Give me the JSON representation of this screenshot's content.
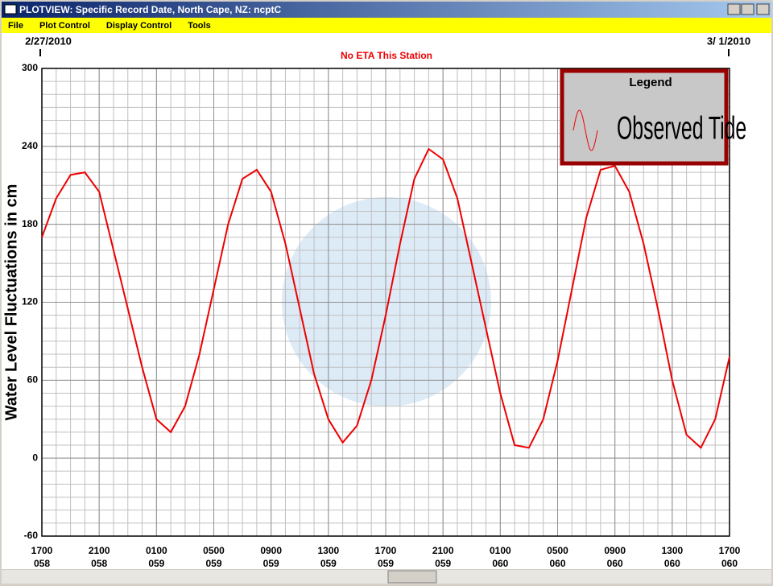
{
  "window": {
    "title": "PLOTVIEW: Specific Record Date, North Cape, NZ: ncptC"
  },
  "menu": [
    "File",
    "Plot Control",
    "Display Control",
    "Tools"
  ],
  "chart_data": {
    "type": "line",
    "start_date": "2/27/2010",
    "end_date": "3/ 1/2010",
    "subtitle": "No ETA This Station",
    "y_label": "Water Level Fluctuations in cm",
    "legend_title": "Legend",
    "grid": true,
    "x": [
      0,
      1,
      2,
      3,
      4,
      5,
      6,
      7,
      8,
      9,
      10,
      11,
      12,
      13,
      14,
      15,
      16,
      17,
      18,
      19,
      20,
      21,
      22,
      23,
      24,
      25,
      26,
      27,
      28,
      29,
      30,
      31,
      32,
      33,
      34,
      35,
      36,
      37,
      38,
      39,
      40,
      41,
      42,
      43,
      44,
      45,
      46,
      47,
      48
    ],
    "series": [
      {
        "name": "Observed Tide",
        "color": "#ee0000",
        "values": [
          170,
          200,
          218,
          220,
          205,
          160,
          115,
          70,
          30,
          20,
          40,
          80,
          130,
          180,
          215,
          222,
          205,
          165,
          115,
          65,
          30,
          12,
          25,
          60,
          110,
          165,
          215,
          238,
          230,
          200,
          150,
          100,
          50,
          10,
          8,
          30,
          75,
          130,
          185,
          222,
          225,
          205,
          165,
          115,
          60,
          18,
          8,
          30,
          78
        ]
      }
    ],
    "xlim": [
      0,
      48
    ],
    "ylim": [
      -60,
      300
    ],
    "yticks": [
      -60,
      0,
      60,
      120,
      180,
      240,
      300
    ],
    "xticks": [
      {
        "value": 0,
        "label": "1700"
      },
      {
        "value": 4,
        "label": "2100"
      },
      {
        "value": 8,
        "label": "0100"
      },
      {
        "value": 12,
        "label": "0500"
      },
      {
        "value": 16,
        "label": "0900"
      },
      {
        "value": 20,
        "label": "1300"
      },
      {
        "value": 24,
        "label": "1700"
      },
      {
        "value": 28,
        "label": "2100"
      },
      {
        "value": 32,
        "label": "0100"
      },
      {
        "value": 36,
        "label": "0500"
      },
      {
        "value": 40,
        "label": "0900"
      },
      {
        "value": 44,
        "label": "1300"
      },
      {
        "value": 48,
        "label": "1700"
      }
    ],
    "xtick_days": [
      "058",
      "058",
      "059",
      "059",
      "059",
      "059",
      "059",
      "059",
      "060",
      "060",
      "060",
      "060",
      "060"
    ]
  }
}
